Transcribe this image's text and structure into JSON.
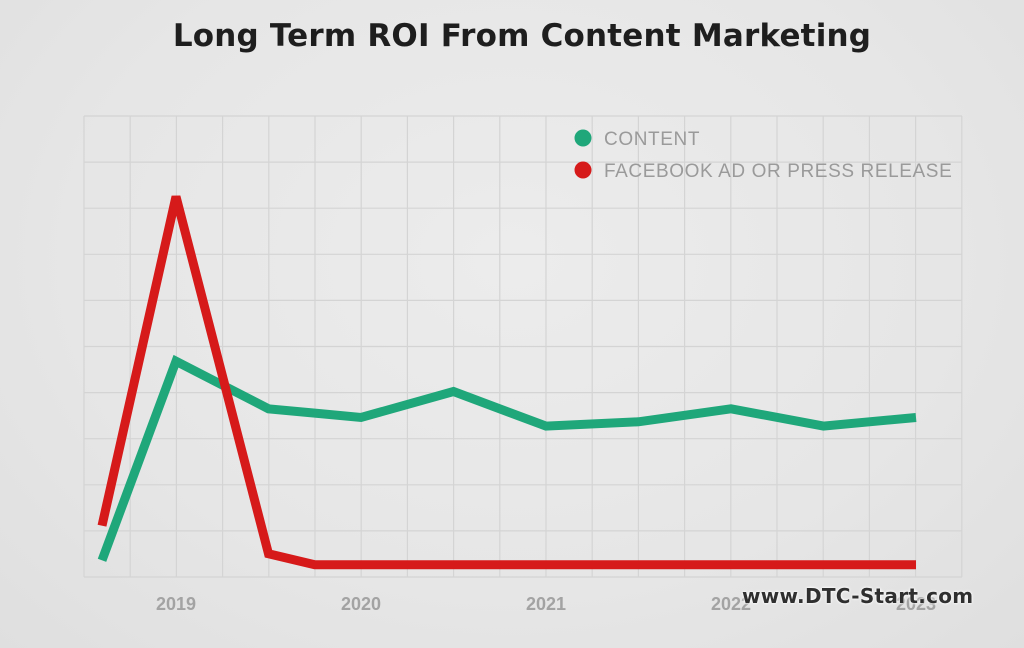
{
  "chart_data": {
    "type": "line",
    "title": "Long Term ROI From Content Marketing",
    "xlabel": "",
    "ylabel": "",
    "x_ticks": [
      "2019",
      "2020",
      "2021",
      "2022",
      "2023"
    ],
    "xlim": [
      2018.5,
      2023.25
    ],
    "ylim": [
      0,
      10
    ],
    "grid": true,
    "legend_position": "top-right",
    "x": [
      2018.6,
      2019.0,
      2019.5,
      2019.75,
      2020.0,
      2020.5,
      2021.0,
      2021.5,
      2022.0,
      2022.5,
      2023.0
    ],
    "series": [
      {
        "name": "CONTENT",
        "color": "#1fa77a",
        "values": [
          0.2,
          4.8,
          3.7,
          3.6,
          3.5,
          4.1,
          3.3,
          3.4,
          3.7,
          3.3,
          3.5
        ]
      },
      {
        "name": "FACEBOOK AD OR PRESS RELEASE",
        "color": "#d61a1a",
        "values": [
          1.0,
          8.6,
          0.35,
          0.1,
          0.1,
          0.1,
          0.1,
          0.1,
          0.1,
          0.1,
          0.1
        ]
      }
    ]
  },
  "watermark": "www.DTC-Start.com"
}
